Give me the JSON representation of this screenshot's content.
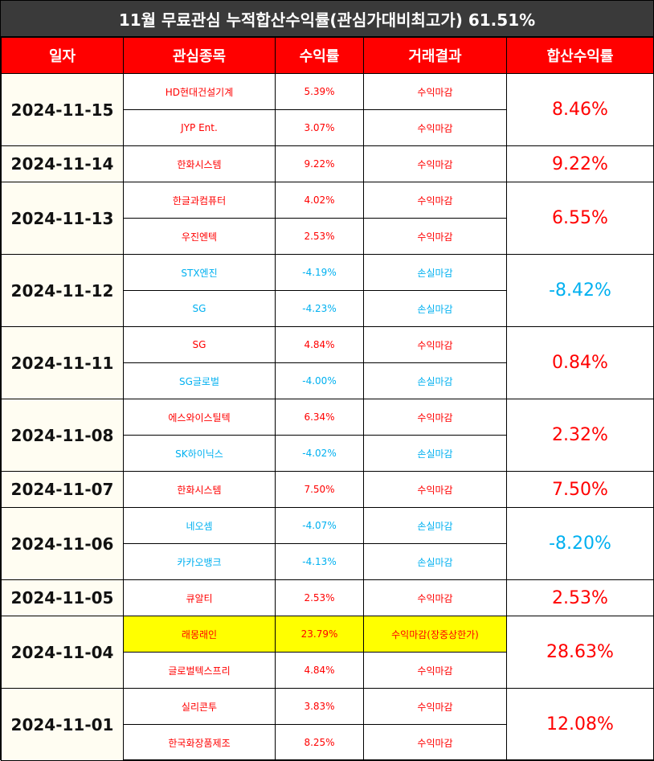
{
  "title": "11월 무료관심 누적합산수익률(관심가대비최고가) 61.51%",
  "headers": [
    "일자",
    "관심종목",
    "수익률",
    "거래결과",
    "합산수익률"
  ],
  "colors": {
    "positive": "#ff0000",
    "negative": "#00b0f0",
    "header_bg": "#ff0000",
    "title_bg": "#3a3a3a",
    "highlight": "#ffff00"
  },
  "rows": [
    {
      "date": "2024-11-15",
      "total": "8.46%",
      "total_sign": "pos",
      "items": [
        {
          "stock": "HD현대건설기계",
          "rate": "5.39%",
          "result": "수익마감",
          "sign": "pos"
        },
        {
          "stock": "JYP Ent.",
          "rate": "3.07%",
          "result": "수익마감",
          "sign": "pos"
        }
      ]
    },
    {
      "date": "2024-11-14",
      "total": "9.22%",
      "total_sign": "pos",
      "items": [
        {
          "stock": "한화시스템",
          "rate": "9.22%",
          "result": "수익마감",
          "sign": "pos"
        }
      ]
    },
    {
      "date": "2024-11-13",
      "total": "6.55%",
      "total_sign": "pos",
      "items": [
        {
          "stock": "한글과컴퓨터",
          "rate": "4.02%",
          "result": "수익마감",
          "sign": "pos"
        },
        {
          "stock": "우진엔텍",
          "rate": "2.53%",
          "result": "수익마감",
          "sign": "pos"
        }
      ]
    },
    {
      "date": "2024-11-12",
      "total": "-8.42%",
      "total_sign": "neg",
      "items": [
        {
          "stock": "STX엔진",
          "rate": "-4.19%",
          "result": "손실마감",
          "sign": "neg"
        },
        {
          "stock": "SG",
          "rate": "-4.23%",
          "result": "손실마감",
          "sign": "neg"
        }
      ]
    },
    {
      "date": "2024-11-11",
      "total": "0.84%",
      "total_sign": "pos",
      "items": [
        {
          "stock": "SG",
          "rate": "4.84%",
          "result": "수익마감",
          "sign": "pos"
        },
        {
          "stock": "SG글로벌",
          "rate": "-4.00%",
          "result": "손실마감",
          "sign": "neg"
        }
      ]
    },
    {
      "date": "2024-11-08",
      "total": "2.32%",
      "total_sign": "pos",
      "items": [
        {
          "stock": "에스와이스틸텍",
          "rate": "6.34%",
          "result": "수익마감",
          "sign": "pos"
        },
        {
          "stock": "SK하이닉스",
          "rate": "-4.02%",
          "result": "손실마감",
          "sign": "neg"
        }
      ]
    },
    {
      "date": "2024-11-07",
      "total": "7.50%",
      "total_sign": "pos",
      "items": [
        {
          "stock": "한화시스템",
          "rate": "7.50%",
          "result": "수익마감",
          "sign": "pos"
        }
      ]
    },
    {
      "date": "2024-11-06",
      "total": "-8.20%",
      "total_sign": "neg",
      "items": [
        {
          "stock": "네오셈",
          "rate": "-4.07%",
          "result": "손실마감",
          "sign": "neg"
        },
        {
          "stock": "카카오뱅크",
          "rate": "-4.13%",
          "result": "손실마감",
          "sign": "neg"
        }
      ]
    },
    {
      "date": "2024-11-05",
      "total": "2.53%",
      "total_sign": "pos",
      "items": [
        {
          "stock": "큐알티",
          "rate": "2.53%",
          "result": "수익마감",
          "sign": "pos"
        }
      ]
    },
    {
      "date": "2024-11-04",
      "total": "28.63%",
      "total_sign": "pos",
      "items": [
        {
          "stock": "래몽래인",
          "rate": "23.79%",
          "result": "수익마감(장중상한가)",
          "sign": "pos",
          "highlight": true
        },
        {
          "stock": "글로벌텍스프리",
          "rate": "4.84%",
          "result": "수익마감",
          "sign": "pos"
        }
      ]
    },
    {
      "date": "2024-11-01",
      "total": "12.08%",
      "total_sign": "pos",
      "items": [
        {
          "stock": "실리콘투",
          "rate": "3.83%",
          "result": "수익마감",
          "sign": "pos"
        },
        {
          "stock": "한국화장품제조",
          "rate": "8.25%",
          "result": "수익마감",
          "sign": "pos"
        }
      ]
    }
  ]
}
